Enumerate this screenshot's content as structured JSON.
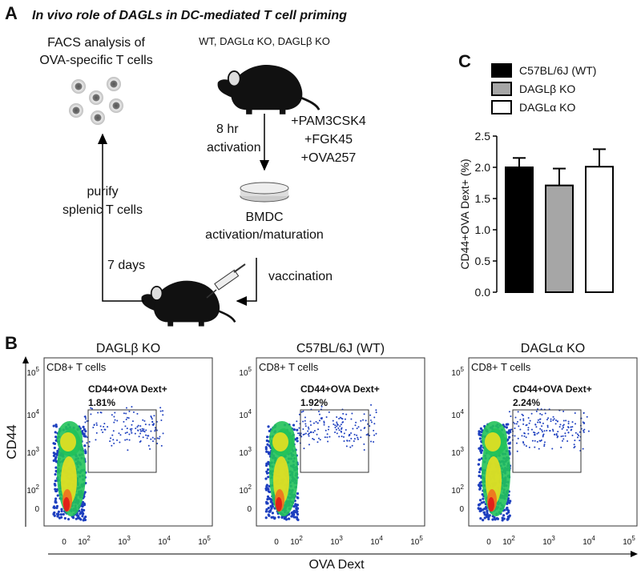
{
  "figure": {
    "panel_a": {
      "label": "A",
      "title": "In vivo role of DAGLs in DC-mediated T cell priming",
      "facs_lines": [
        "FACS analysis of",
        "OVA-specific T cells"
      ],
      "genotypes": "WT, DAGLα KO, DAGLβ KO",
      "activation_lines": [
        "8 hr",
        "activation"
      ],
      "stimuli": [
        "+PAM3CSK4",
        "+FGK45",
        "+OVA257"
      ],
      "bmdc_lines": [
        "BMDC",
        "activation/maturation"
      ],
      "vaccination": "vaccination",
      "days": "7 days",
      "purify_lines": [
        "purify",
        "splenic T cells"
      ]
    },
    "panel_b": {
      "label": "B",
      "y_label": "CD44",
      "x_label": "OVA Dext",
      "population": "CD8+ T cells",
      "gate_label": "CD44+OVA Dext+",
      "ticks": [
        [
          "0"
        ],
        [
          "10",
          "2"
        ],
        [
          "10",
          "3"
        ],
        [
          "10",
          "4"
        ],
        [
          "10",
          "5"
        ]
      ],
      "plots": [
        {
          "title": "DAGLβ KO",
          "percent": "1.81%"
        },
        {
          "title": "C57BL/6J (WT)",
          "percent": "1.92%"
        },
        {
          "title": "DAGLα KO",
          "percent": "2.24%"
        }
      ]
    }
  },
  "chart_data": {
    "type": "bar",
    "panel_label": "C",
    "y_label": "CD44+OVA Dext+ (%)",
    "ylim": [
      0,
      2.5
    ],
    "yticks": [
      {
        "value": 0,
        "label": "0.0"
      },
      0.5,
      {
        "value": 1,
        "label": "1.0"
      },
      1.5,
      {
        "value": 2,
        "label": "2.0"
      },
      2.5
    ],
    "series": [
      {
        "name": "C57BL/6J (WT)",
        "color": "#000000",
        "values": [
          2.0
        ],
        "errors": [
          0.15
        ]
      },
      {
        "name": "DAGLβ KO",
        "color": "#a6a6a6",
        "values": [
          1.71
        ],
        "errors": [
          0.27
        ]
      },
      {
        "name": "DAGLα KO",
        "color": "#ffffff",
        "values": [
          2.01
        ],
        "errors": [
          0.28
        ]
      }
    ]
  }
}
